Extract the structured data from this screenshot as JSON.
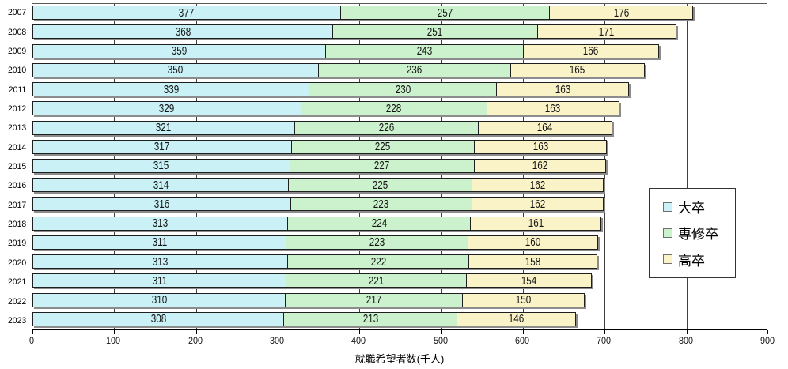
{
  "chart_data": {
    "type": "bar",
    "orientation": "horizontal",
    "stacked": true,
    "title": "",
    "xlabel": "就職希望者数(千人)",
    "ylabel": "",
    "xlim": [
      0,
      900
    ],
    "xticks": [
      0,
      100,
      200,
      300,
      400,
      500,
      600,
      700,
      800,
      900
    ],
    "grid": "vertical-major",
    "legend_position": "right-inside",
    "categories": [
      "2007",
      "2008",
      "2009",
      "2010",
      "2011",
      "2012",
      "2013",
      "2014",
      "2015",
      "2016",
      "2017",
      "2018",
      "2019",
      "2020",
      "2021",
      "2022",
      "2023"
    ],
    "series": [
      {
        "name": "大卒",
        "color": "#c9f1f6",
        "values": [
          377,
          368,
          359,
          350,
          339,
          329,
          321,
          317,
          315,
          314,
          316,
          313,
          311,
          313,
          311,
          310,
          308
        ]
      },
      {
        "name": "専修卒",
        "color": "#ccf2cd",
        "values": [
          257,
          251,
          243,
          236,
          230,
          228,
          226,
          225,
          227,
          225,
          223,
          224,
          223,
          222,
          221,
          217,
          213
        ]
      },
      {
        "name": "高卒",
        "color": "#faf3c8",
        "values": [
          176,
          171,
          166,
          165,
          163,
          163,
          164,
          163,
          162,
          162,
          162,
          161,
          160,
          158,
          154,
          150,
          146
        ]
      }
    ]
  }
}
